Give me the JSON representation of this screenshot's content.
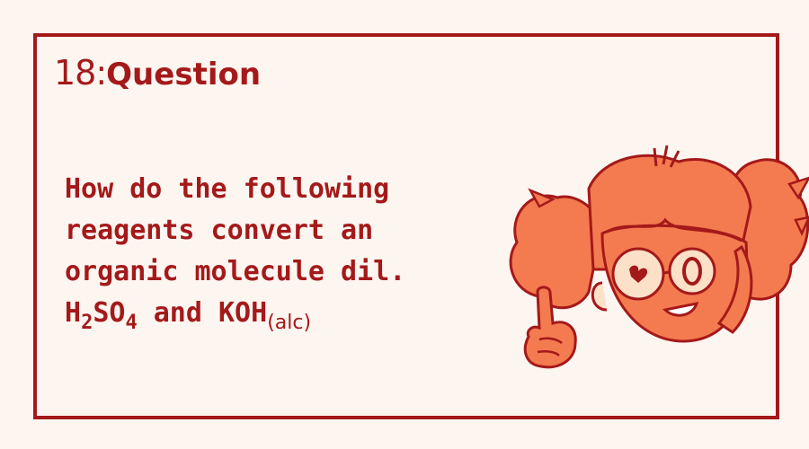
{
  "card": {
    "number": "18:",
    "heading": "Question"
  },
  "question": {
    "line1": "How do the following",
    "line2": "reagents convert an",
    "line3": "organic molecule dil.",
    "line4_h": "H",
    "line4_sub1": "2",
    "line4_so": "SO",
    "line4_sub2": "4",
    "line4_and": " and KOH",
    "line4_cond": "(alc)"
  },
  "colors": {
    "accent": "#a4191a",
    "character": "#f47a50",
    "background": "#fdf5f0"
  }
}
